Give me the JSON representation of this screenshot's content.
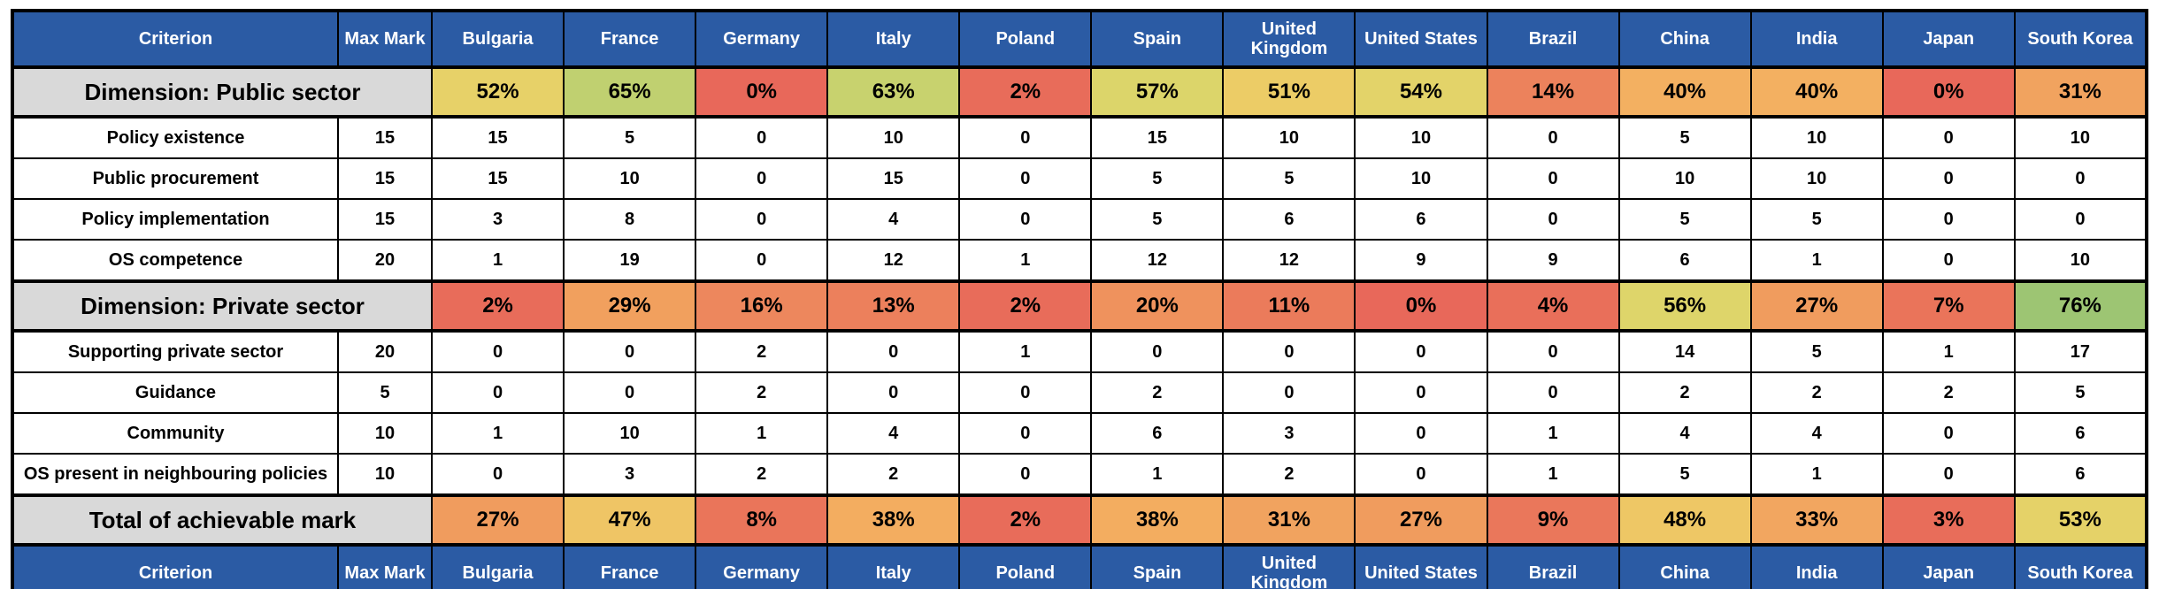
{
  "colors": {
    "header_bg": "#2B5BA4",
    "header_text": "#FFFFFF",
    "dimension_bg": "#D9D9D9",
    "grid_border": "#000000"
  },
  "chart_data": {
    "type": "table",
    "subtype": "heatmap-table",
    "color_scale": {
      "low": "#E8685A",
      "mid": "#F3B061",
      "high": "#9DC573"
    },
    "header": {
      "criterion": "Criterion",
      "max_mark": "Max Mark",
      "countries": [
        "Bulgaria",
        "France",
        "Germany",
        "Italy",
        "Poland",
        "Spain",
        "United Kingdom",
        "United States",
        "Brazil",
        "China",
        "India",
        "Japan",
        "South Korea"
      ]
    },
    "sections": [
      {
        "dimension_label": "Dimension: Public sector",
        "percentages": [
          "52%",
          "65%",
          "0%",
          "63%",
          "2%",
          "57%",
          "51%",
          "54%",
          "14%",
          "40%",
          "40%",
          "0%",
          "31%"
        ],
        "percent_colors": [
          "#E7D168",
          "#C0D070",
          "#E8685A",
          "#C8D26E",
          "#E86C5A",
          "#DCD56A",
          "#ECCC66",
          "#E3D369",
          "#EC825C",
          "#F3B061",
          "#F3B061",
          "#E8685A",
          "#F1A35F"
        ],
        "rows": [
          {
            "criterion": "Policy existence",
            "max_mark": "15",
            "values": [
              "15",
              "5",
              "0",
              "10",
              "0",
              "15",
              "10",
              "10",
              "0",
              "5",
              "10",
              "0",
              "10"
            ]
          },
          {
            "criterion": "Public procurement",
            "max_mark": "15",
            "values": [
              "15",
              "10",
              "0",
              "15",
              "0",
              "5",
              "5",
              "10",
              "0",
              "10",
              "10",
              "0",
              "0"
            ]
          },
          {
            "criterion": "Policy implementation",
            "max_mark": "15",
            "values": [
              "3",
              "8",
              "0",
              "4",
              "0",
              "5",
              "6",
              "6",
              "0",
              "5",
              "5",
              "0",
              "0"
            ]
          },
          {
            "criterion": "OS competence",
            "max_mark": "20",
            "values": [
              "1",
              "19",
              "0",
              "12",
              "1",
              "12",
              "12",
              "9",
              "9",
              "6",
              "1",
              "0",
              "10"
            ]
          }
        ]
      },
      {
        "dimension_label": "Dimension: Private sector",
        "percentages": [
          "2%",
          "29%",
          "16%",
          "13%",
          "2%",
          "20%",
          "11%",
          "0%",
          "4%",
          "56%",
          "27%",
          "7%",
          "76%"
        ],
        "percent_colors": [
          "#E86C5A",
          "#F1A05E",
          "#ED875D",
          "#EC805C",
          "#E86C5A",
          "#EF925D",
          "#EB7B5B",
          "#E8685A",
          "#E96F5A",
          "#DED56A",
          "#F09C5E",
          "#EA745A",
          "#9DC573"
        ],
        "rows": [
          {
            "criterion": "Supporting private sector",
            "max_mark": "20",
            "values": [
              "0",
              "0",
              "2",
              "0",
              "1",
              "0",
              "0",
              "0",
              "0",
              "14",
              "5",
              "1",
              "17"
            ]
          },
          {
            "criterion": "Guidance",
            "max_mark": "5",
            "values": [
              "0",
              "0",
              "2",
              "0",
              "0",
              "2",
              "0",
              "0",
              "0",
              "2",
              "2",
              "2",
              "5"
            ]
          },
          {
            "criterion": "Community",
            "max_mark": "10",
            "values": [
              "1",
              "10",
              "1",
              "4",
              "0",
              "6",
              "3",
              "0",
              "1",
              "4",
              "4",
              "0",
              "6"
            ]
          },
          {
            "criterion": "OS present in neighbouring policies",
            "max_mark": "10",
            "values": [
              "0",
              "3",
              "2",
              "2",
              "0",
              "1",
              "2",
              "0",
              "1",
              "5",
              "1",
              "0",
              "6"
            ]
          }
        ]
      }
    ],
    "total": {
      "label": "Total of achievable mark",
      "percentages": [
        "27%",
        "47%",
        "8%",
        "38%",
        "2%",
        "38%",
        "31%",
        "27%",
        "9%",
        "48%",
        "33%",
        "3%",
        "53%"
      ],
      "percent_colors": [
        "#F09C5E",
        "#EFC565",
        "#EA755A",
        "#F3AD60",
        "#E86C5A",
        "#F3AD60",
        "#F1A35F",
        "#F09C5E",
        "#EA775B",
        "#EEC765",
        "#F2A660",
        "#E86D5A",
        "#E5D268"
      ]
    }
  }
}
